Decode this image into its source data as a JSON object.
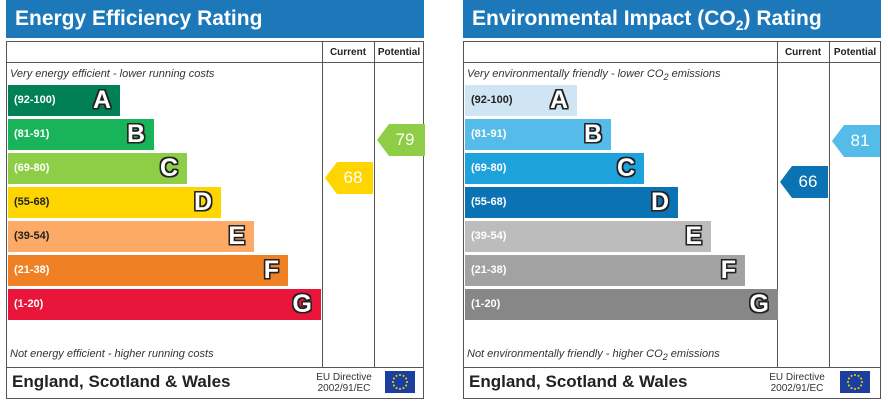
{
  "chart_data": [
    {
      "type": "bar",
      "title": "Energy Efficiency Rating",
      "columns": [
        "Current",
        "Potential"
      ],
      "top_note": "Very energy efficient - lower running costs",
      "bottom_note": "Not energy efficient - higher running costs",
      "bands": [
        {
          "range": "(92-100)",
          "letter": "A",
          "color": "#008054"
        },
        {
          "range": "(81-91)",
          "letter": "B",
          "color": "#19b459"
        },
        {
          "range": "(69-80)",
          "letter": "C",
          "color": "#8dce46"
        },
        {
          "range": "(55-68)",
          "letter": "D",
          "color": "#ffd500"
        },
        {
          "range": "(39-54)",
          "letter": "E",
          "color": "#fcaa65"
        },
        {
          "range": "(21-38)",
          "letter": "F",
          "color": "#ef8023"
        },
        {
          "range": "(1-20)",
          "letter": "G",
          "color": "#e9153b"
        }
      ],
      "current": {
        "value": 68,
        "label": "68",
        "band": "D",
        "color": "#ffd500"
      },
      "potential": {
        "value": 79,
        "label": "79",
        "band": "C",
        "color": "#8dce46"
      },
      "footer": {
        "country": "England, Scotland & Wales",
        "directive_line1": "EU Directive",
        "directive_line2": "2002/91/EC"
      }
    },
    {
      "type": "bar",
      "title_parts": {
        "before": "Environmental Impact (CO",
        "sub": "2",
        "after": ") Rating"
      },
      "columns": [
        "Current",
        "Potential"
      ],
      "top_note_parts": {
        "before": "Very environmentally friendly - lower CO",
        "sub": "2",
        "after": " emissions"
      },
      "bottom_note_parts": {
        "before": "Not environmentally friendly - higher CO",
        "sub": "2",
        "after": " emissions"
      },
      "bands": [
        {
          "range": "(92-100)",
          "letter": "A",
          "color": "#cfe5f4"
        },
        {
          "range": "(81-91)",
          "letter": "B",
          "color": "#55bbe8"
        },
        {
          "range": "(69-80)",
          "letter": "C",
          "color": "#1ea2dc"
        },
        {
          "range": "(55-68)",
          "letter": "D",
          "color": "#0b72b4"
        },
        {
          "range": "(39-54)",
          "letter": "E",
          "color": "#bdbcbd"
        },
        {
          "range": "(21-38)",
          "letter": "F",
          "color": "#a3a2a3"
        },
        {
          "range": "(1-20)",
          "letter": "G",
          "color": "#878787"
        }
      ],
      "current": {
        "value": 66,
        "label": "66",
        "band": "D",
        "color": "#0b72b4"
      },
      "potential": {
        "value": 81,
        "label": "81",
        "band": "B",
        "color": "#55bbe8"
      },
      "footer": {
        "country": "England, Scotland & Wales",
        "directive_line1": "EU Directive",
        "directive_line2": "2002/91/EC"
      }
    }
  ]
}
